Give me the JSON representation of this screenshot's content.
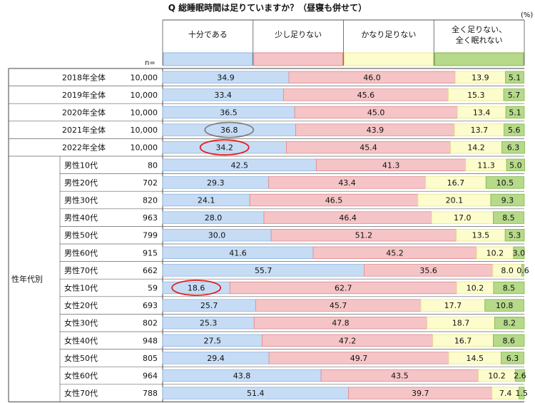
{
  "title": "Q 総睡眠時間は足りていますか？（昼寝も併せて）",
  "unit": "(%)",
  "n_label": "n=",
  "group_label": "性年代別",
  "colors": {
    "c1": "#c6dcf5",
    "c2": "#f5c4c6",
    "c3": "#fcfccc",
    "c4": "#b6d98a",
    "line1": "#8fb4e2",
    "line2": "#e0888e",
    "line3": "#e8e890",
    "line4": "#80b848",
    "ellipse_gray": "#808080",
    "ellipse_red": "#e02020"
  },
  "chart_data": {
    "type": "bar",
    "orientation": "horizontal",
    "stacked": true,
    "xlim": [
      0,
      100
    ],
    "series": [
      {
        "name": "十分である"
      },
      {
        "name": "少し足りない"
      },
      {
        "name": "かなり足りない"
      },
      {
        "name": "全く足りない、全く眠れない",
        "name_lines": [
          "全く足りない、",
          "全く眠れない"
        ]
      }
    ],
    "rows": [
      {
        "label": "2018年全体",
        "group": "",
        "n": "10,000",
        "values": [
          34.9,
          46.0,
          13.9,
          5.1
        ]
      },
      {
        "label": "2019年全体",
        "group": "",
        "n": "10,000",
        "values": [
          33.4,
          45.6,
          15.3,
          5.7
        ]
      },
      {
        "label": "2020年全体",
        "group": "",
        "n": "10,000",
        "values": [
          36.5,
          45.0,
          13.4,
          5.1
        ]
      },
      {
        "label": "2021年全体",
        "group": "",
        "n": "10,000",
        "values": [
          36.8,
          43.9,
          13.7,
          5.6
        ],
        "highlight": "gray"
      },
      {
        "label": "2022年全体",
        "group": "",
        "n": "10,000",
        "values": [
          34.2,
          45.4,
          14.2,
          6.3
        ],
        "highlight": "red"
      },
      {
        "label": "男性10代",
        "group": "性年代別",
        "n": "80",
        "values": [
          42.5,
          41.3,
          11.3,
          5.0
        ]
      },
      {
        "label": "男性20代",
        "group": "性年代別",
        "n": "702",
        "values": [
          29.3,
          43.4,
          16.7,
          10.5
        ]
      },
      {
        "label": "男性30代",
        "group": "性年代別",
        "n": "820",
        "values": [
          24.1,
          46.5,
          20.1,
          9.3
        ]
      },
      {
        "label": "男性40代",
        "group": "性年代別",
        "n": "963",
        "values": [
          28.0,
          46.4,
          17.0,
          8.5
        ]
      },
      {
        "label": "男性50代",
        "group": "性年代別",
        "n": "799",
        "values": [
          30.0,
          51.2,
          13.5,
          5.3
        ]
      },
      {
        "label": "男性60代",
        "group": "性年代別",
        "n": "915",
        "values": [
          41.6,
          45.2,
          10.2,
          3.0
        ]
      },
      {
        "label": "男性70代",
        "group": "性年代別",
        "n": "662",
        "values": [
          55.7,
          35.6,
          8.0,
          0.6
        ]
      },
      {
        "label": "女性10代",
        "group": "性年代別",
        "n": "59",
        "values": [
          18.6,
          62.7,
          10.2,
          8.5
        ],
        "highlight": "red"
      },
      {
        "label": "女性20代",
        "group": "性年代別",
        "n": "693",
        "values": [
          25.7,
          45.7,
          17.7,
          10.8
        ]
      },
      {
        "label": "女性30代",
        "group": "性年代別",
        "n": "802",
        "values": [
          25.3,
          47.8,
          18.7,
          8.2
        ]
      },
      {
        "label": "女性40代",
        "group": "性年代別",
        "n": "948",
        "values": [
          27.5,
          47.2,
          16.7,
          8.6
        ]
      },
      {
        "label": "女性50代",
        "group": "性年代別",
        "n": "805",
        "values": [
          29.4,
          49.7,
          14.5,
          6.3
        ]
      },
      {
        "label": "女性60代",
        "group": "性年代別",
        "n": "964",
        "values": [
          43.8,
          43.5,
          10.2,
          2.6
        ]
      },
      {
        "label": "女性70代",
        "group": "性年代別",
        "n": "788",
        "values": [
          51.4,
          39.7,
          7.4,
          1.5
        ]
      }
    ]
  }
}
